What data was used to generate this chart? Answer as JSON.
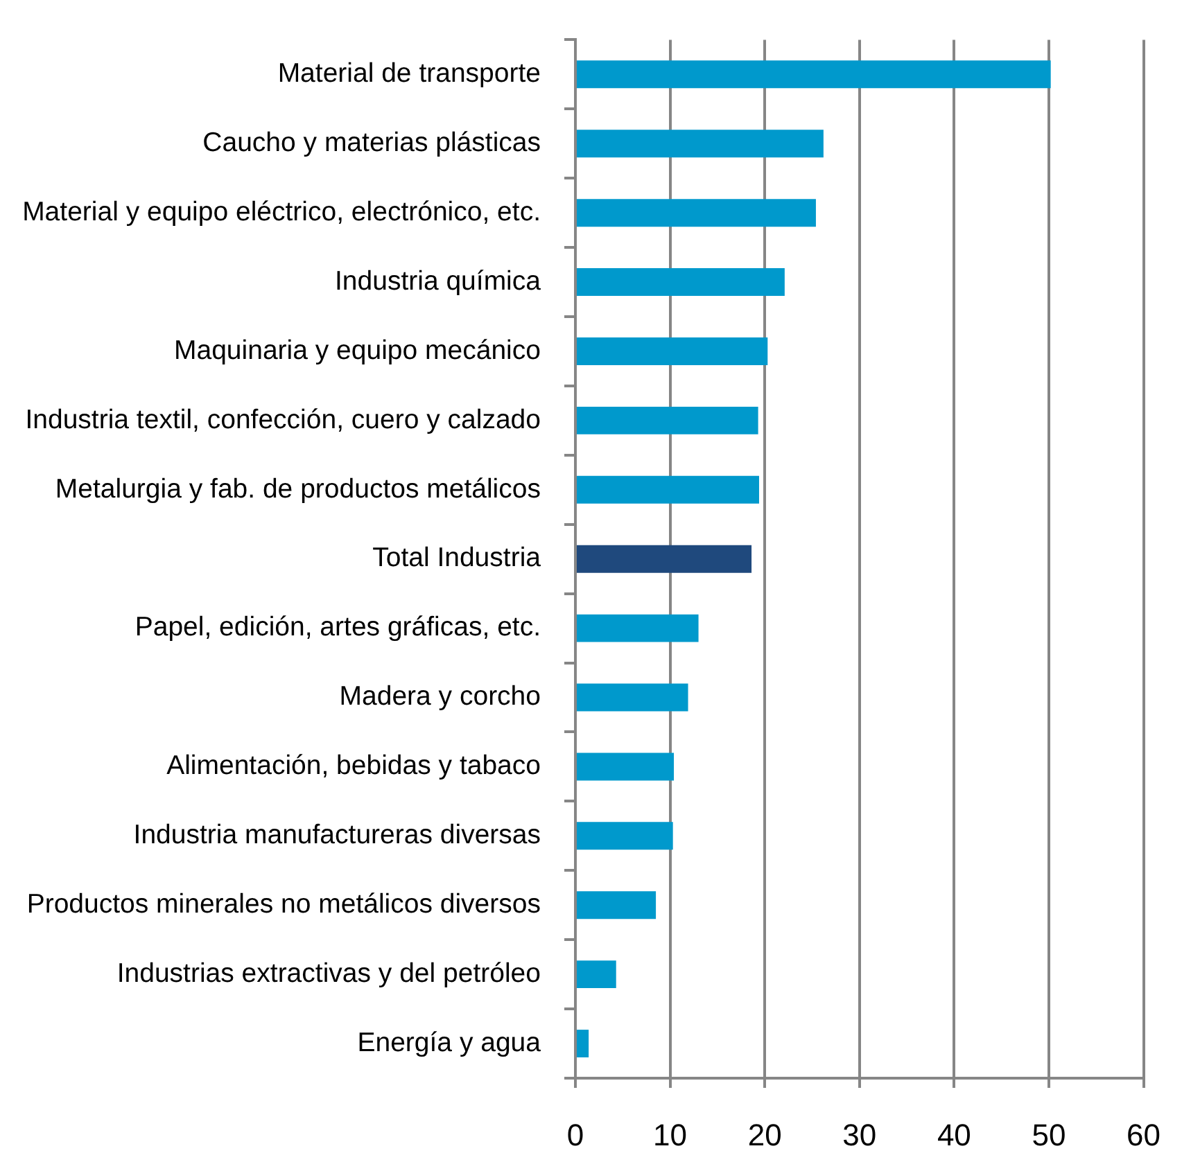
{
  "chart_data": {
    "type": "bar",
    "orientation": "horizontal",
    "categories": [
      "Material de transporte",
      "Caucho y materias plásticas",
      "Material y equipo eléctrico, electrónico, etc.",
      "Industria química",
      "Maquinaria y equipo mecánico",
      "Industria textil, confección, cuero y calzado",
      "Metalurgia y fab. de productos metálicos",
      "Total Industria",
      "Papel, edición, artes gráficas, etc.",
      "Madera y corcho",
      "Alimentación, bebidas y tabaco",
      "Industria manufactureras diversas",
      "Productos minerales no metálicos diversos",
      "Industrias extractivas y del petróleo",
      "Energía y agua"
    ],
    "values": [
      50.2,
      26.2,
      25.4,
      22.1,
      20.3,
      19.3,
      19.4,
      18.6,
      13.0,
      11.9,
      10.4,
      10.3,
      8.5,
      4.3,
      1.4
    ],
    "colors": [
      "#0099cc",
      "#0099cc",
      "#0099cc",
      "#0099cc",
      "#0099cc",
      "#0099cc",
      "#0099cc",
      "#1f497d",
      "#0099cc",
      "#0099cc",
      "#0099cc",
      "#0099cc",
      "#0099cc",
      "#0099cc",
      "#0099cc"
    ],
    "xlim": [
      0,
      60
    ],
    "xticks": [
      0,
      10,
      20,
      30,
      40,
      50,
      60
    ],
    "grid": "x"
  }
}
